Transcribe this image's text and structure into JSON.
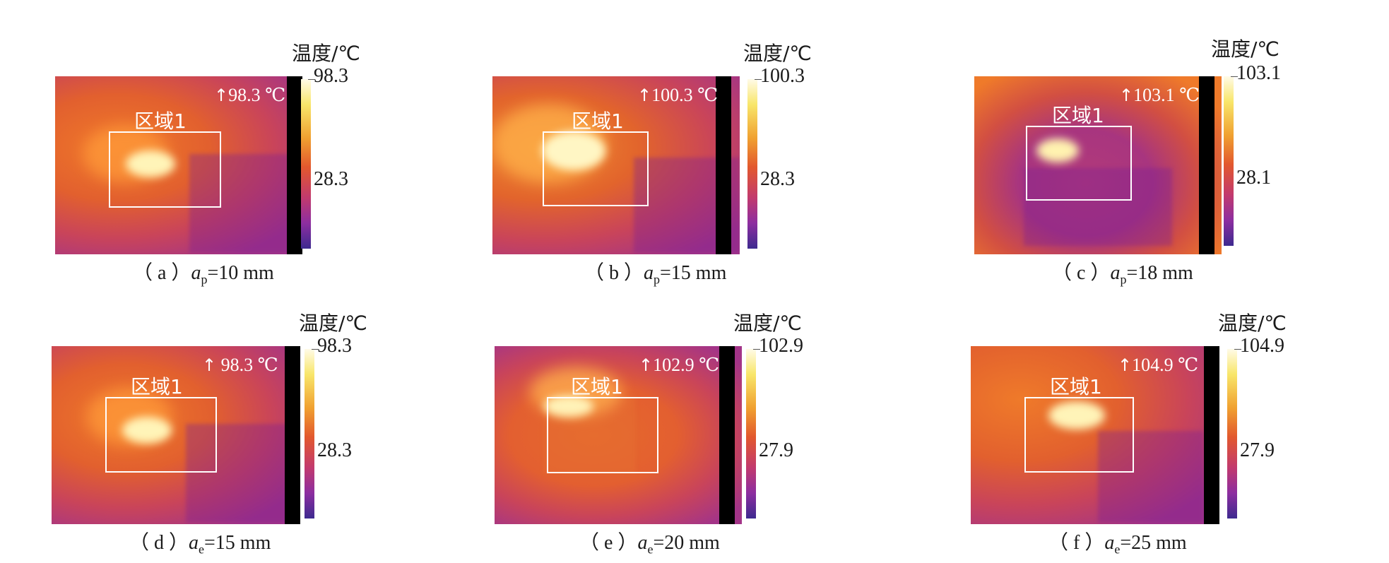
{
  "colors": {
    "thermal_hot": "#fff7c0",
    "thermal_warm": "#f08a2a",
    "thermal_cool": "#9a2fa0",
    "region_box": "#ffffff"
  },
  "panels": [
    {
      "id": "a",
      "unit": "温度/℃",
      "cb_max": "98.3",
      "cb_mid": "28.3",
      "max_arrow": "↑",
      "max_value": "98.3",
      "max_unit": "℃",
      "region": "区域1",
      "cap_open": "（ a ）",
      "cap_var": "a",
      "cap_sub": "p",
      "cap_rest": "=10 mm"
    },
    {
      "id": "b",
      "unit": "温度/℃",
      "cb_max": "100.3",
      "cb_mid": "28.3",
      "max_arrow": "↑",
      "max_value": "100.3",
      "max_unit": "℃",
      "region": "区域1",
      "cap_open": "（ b ）",
      "cap_var": "a",
      "cap_sub": "p",
      "cap_rest": "=15 mm"
    },
    {
      "id": "c",
      "unit": "温度/℃",
      "cb_max": "103.1",
      "cb_mid": "28.1",
      "max_arrow": "↑",
      "max_value": "103.1",
      "max_unit": "℃",
      "region": "区域1",
      "cap_open": "（ c ）",
      "cap_var": "a",
      "cap_sub": "p",
      "cap_rest": "=18 mm"
    },
    {
      "id": "d",
      "unit": "温度/℃",
      "cb_max": "98.3",
      "cb_mid": "28.3",
      "max_arrow": "↑",
      "max_value": "98.3",
      "max_unit": "℃",
      "region": "区域1",
      "cap_open": "（ d ）",
      "cap_var": "a",
      "cap_sub": "e",
      "cap_rest": "=15 mm"
    },
    {
      "id": "e",
      "unit": "温度/℃",
      "cb_max": "102.9",
      "cb_mid": "27.9",
      "max_arrow": "↑",
      "max_value": "102.9",
      "max_unit": "℃",
      "region": "区域1",
      "cap_open": "（ e ）",
      "cap_var": "a",
      "cap_sub": "e",
      "cap_rest": "=20 mm"
    },
    {
      "id": "f",
      "unit": "温度/℃",
      "cb_max": "104.9",
      "cb_mid": "27.9",
      "max_arrow": "↑",
      "max_value": "104.9",
      "max_unit": "℃",
      "region": "区域1",
      "cap_open": "（ f ）",
      "cap_var": "a",
      "cap_sub": "e",
      "cap_rest": "=25 mm"
    }
  ]
}
